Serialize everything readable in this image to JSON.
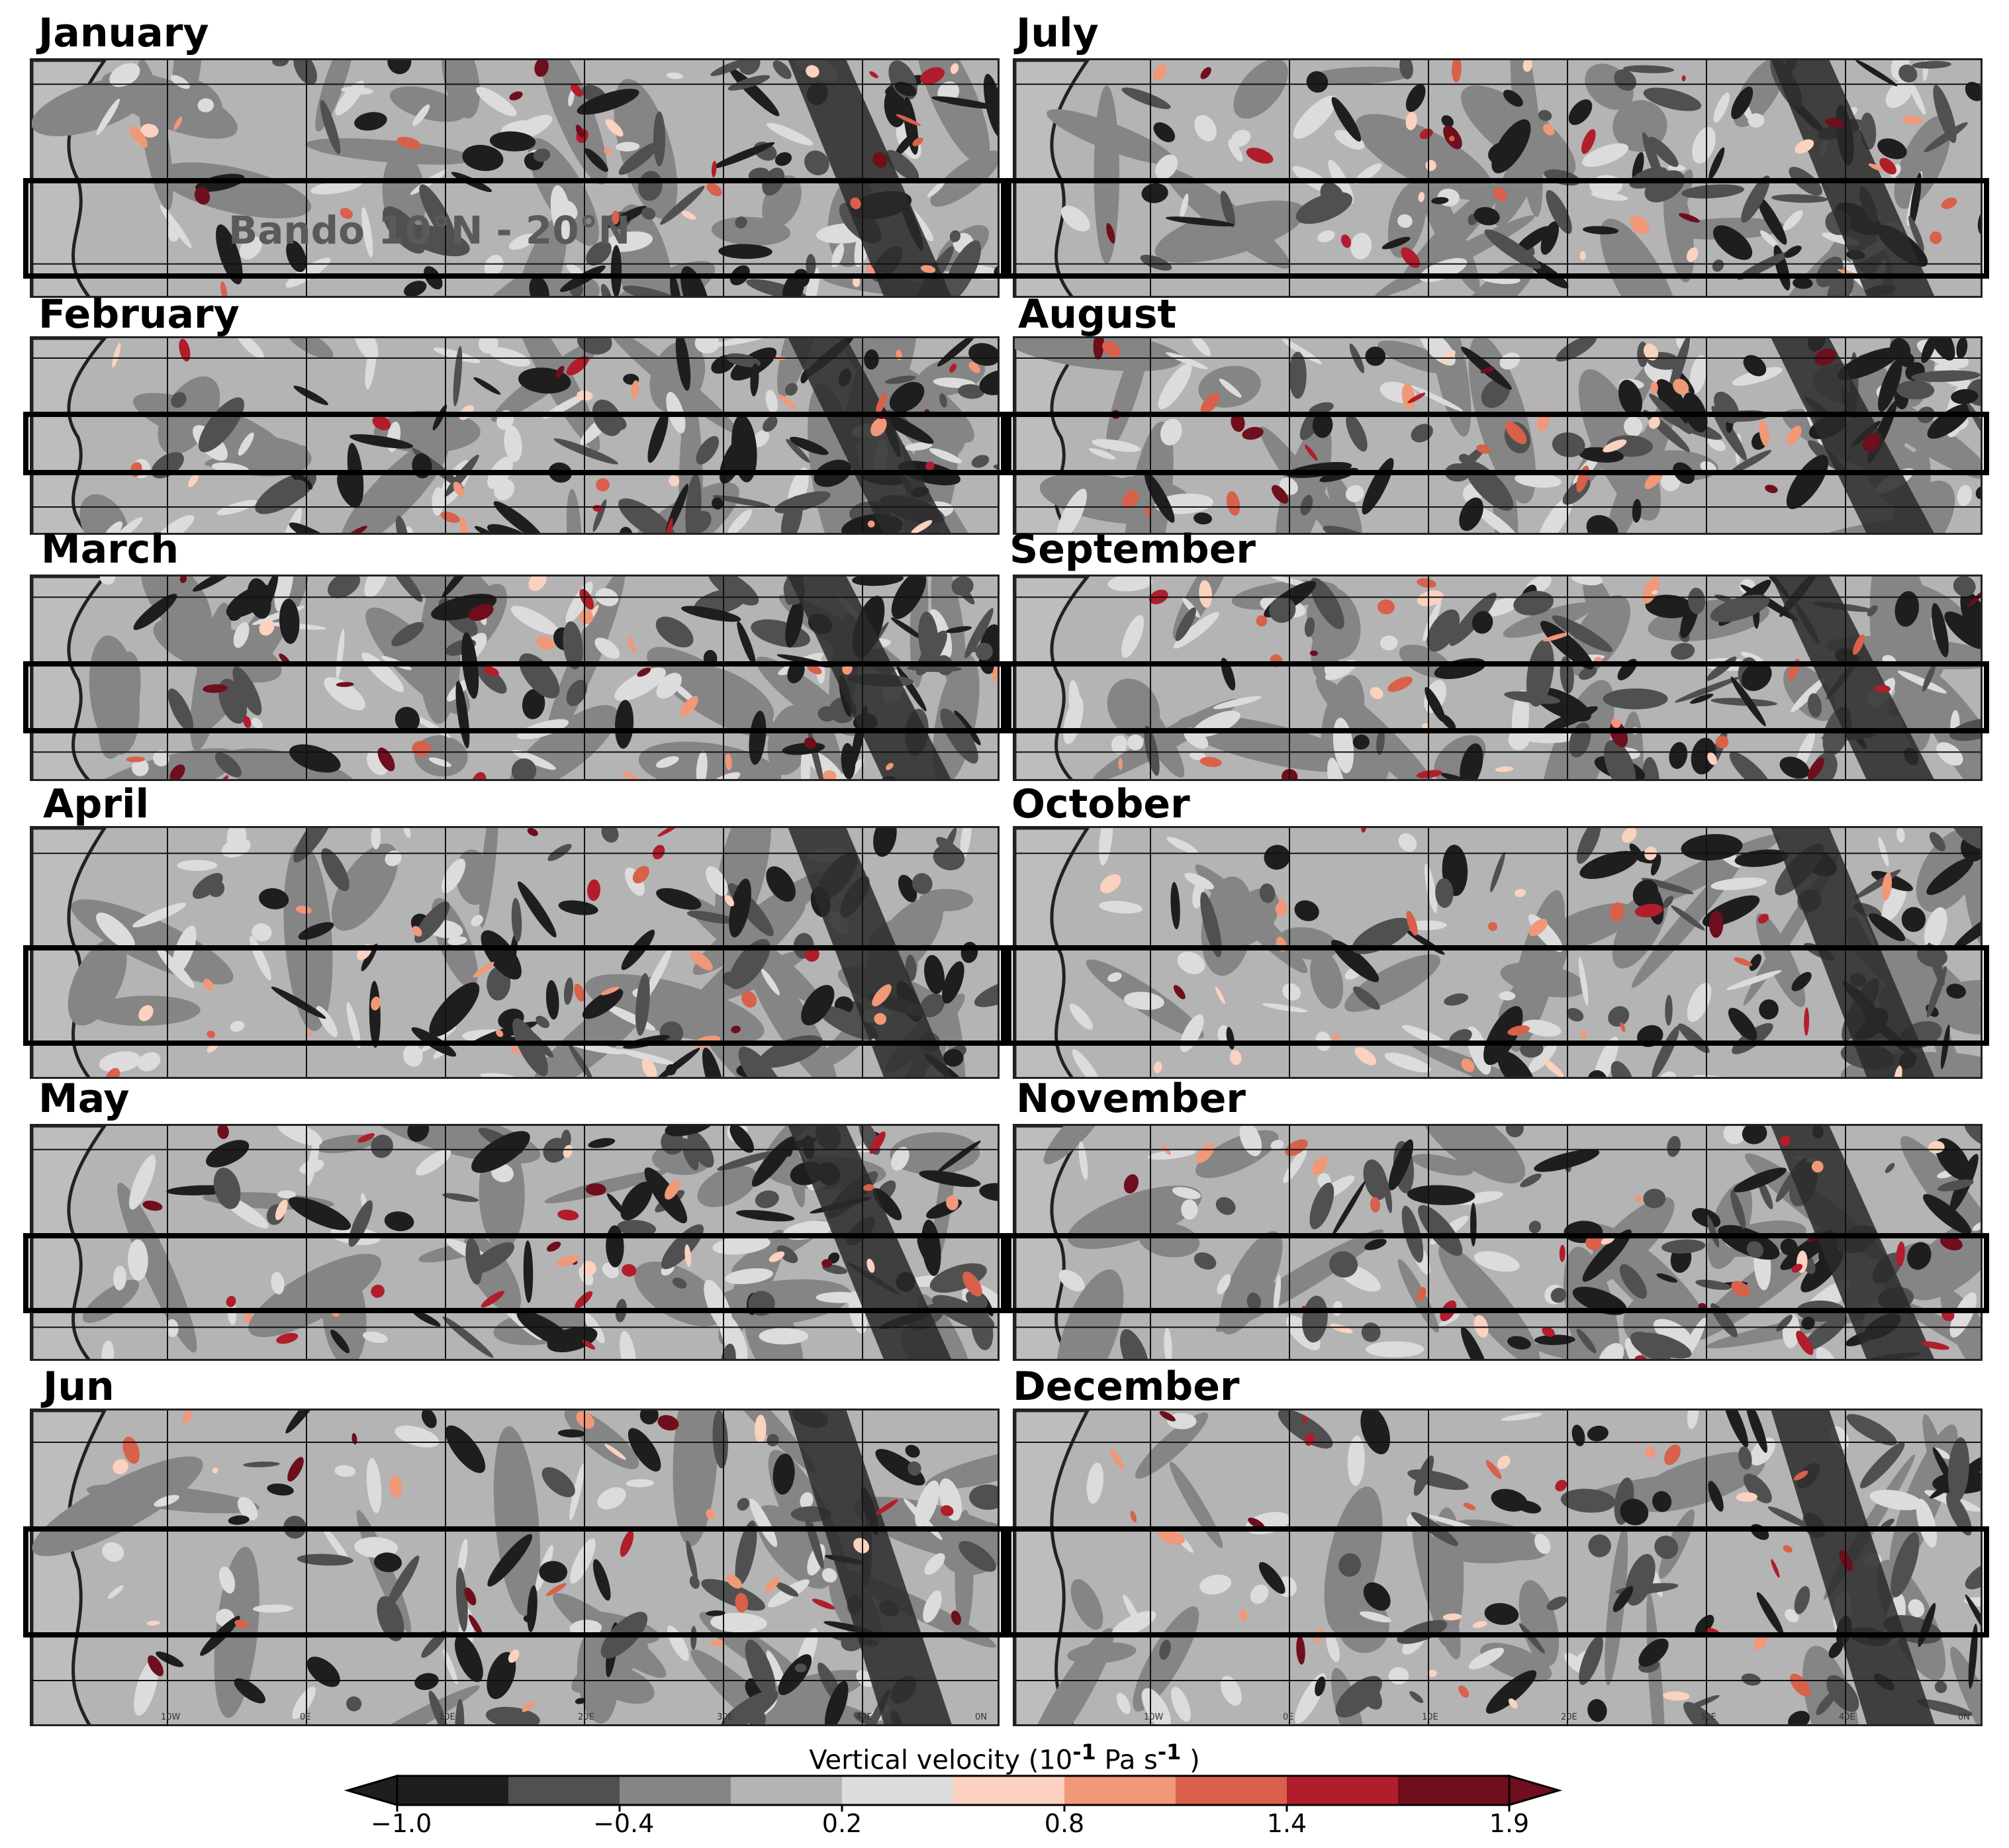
{
  "panels": [
    {
      "month": "January",
      "band_label": "Bando 10°N - 20°N"
    },
    {
      "month": "February"
    },
    {
      "month": "March"
    },
    {
      "month": "April"
    },
    {
      "month": "May"
    },
    {
      "month": "Jun"
    },
    {
      "month": "July"
    },
    {
      "month": "August"
    },
    {
      "month": "September"
    },
    {
      "month": "October"
    },
    {
      "month": "November"
    },
    {
      "month": "December"
    }
  ],
  "longitude_labels": [
    "10W",
    "0E",
    "10E",
    "20E",
    "30E",
    "40E",
    "0N"
  ],
  "colorbar": {
    "title_prefix": "Vertical velocity (10",
    "title_exponent": "-1",
    "title_unit": " Pa s",
    "title_unit_exponent": "-1",
    "title_suffix": " )",
    "tick_labels": [
      "−1.0",
      "−0.4",
      "0.2",
      "0.8",
      "1.4",
      "1.9"
    ],
    "colors": [
      "#1e1e1e",
      "#505050",
      "#858585",
      "#b4b4b4",
      "#dcdcdc",
      "#fbd2bf",
      "#f09878",
      "#d9604a",
      "#b11d2b",
      "#6f0e1c"
    ],
    "extend_low_color": "#1e1e1e",
    "extend_high_color": "#6f0e1c"
  }
}
